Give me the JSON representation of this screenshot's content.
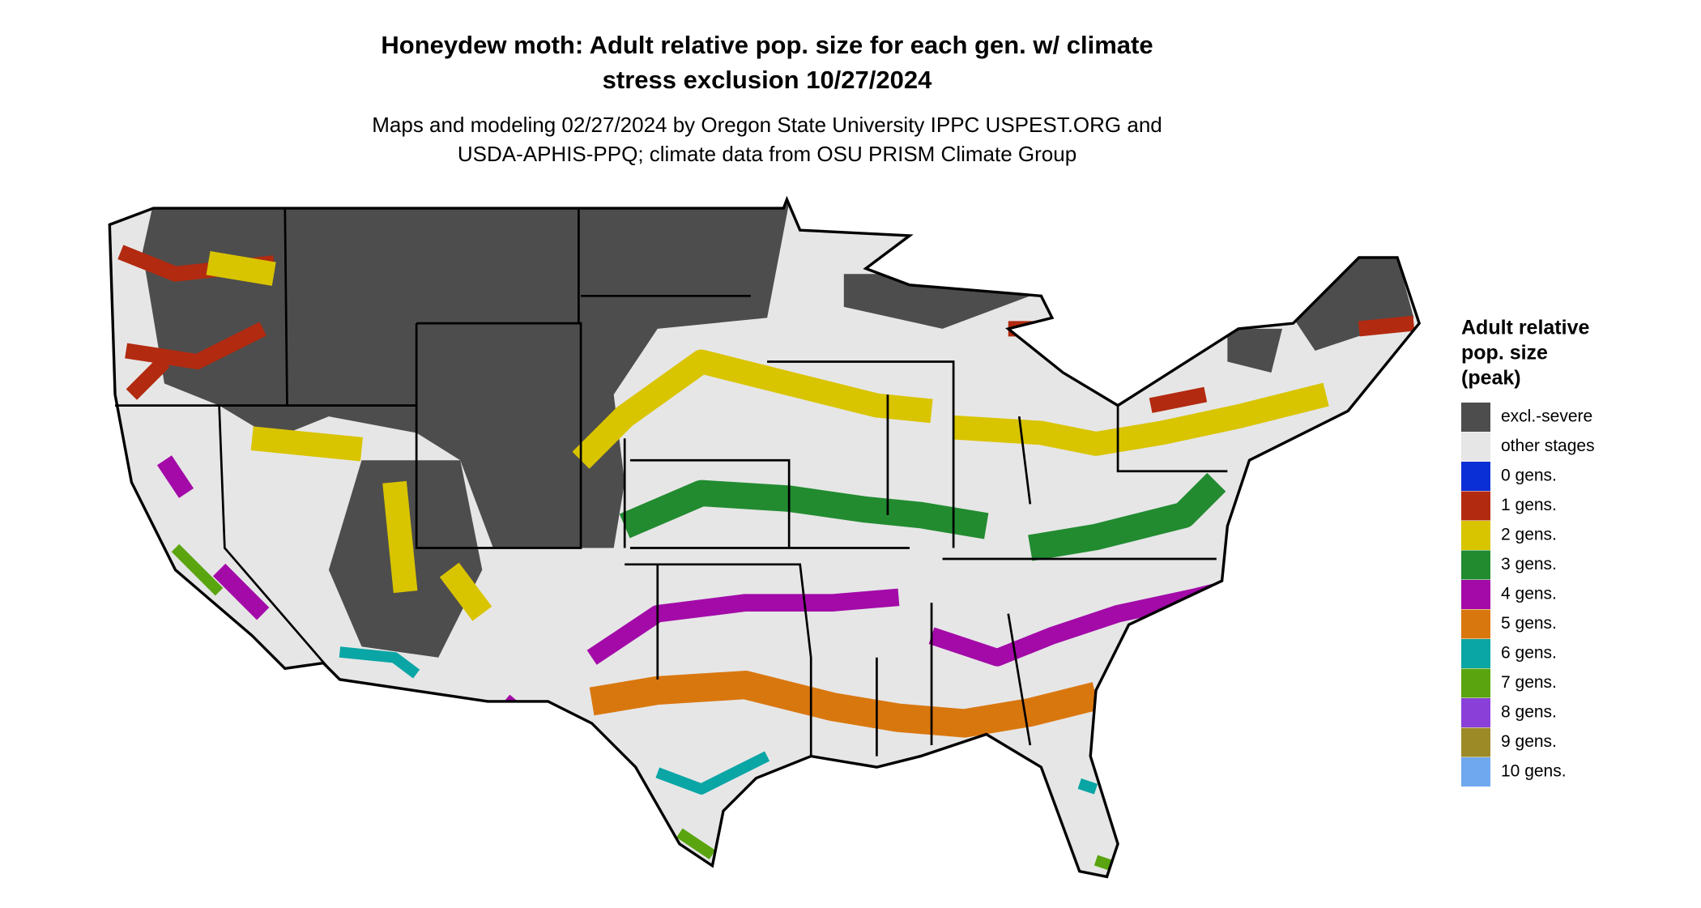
{
  "title": [
    "Honeydew moth: Adult relative pop. size for each gen. w/ climate",
    "stress exclusion 10/27/2024"
  ],
  "subtitle": [
    "Maps and modeling 02/27/2024 by Oregon State University IPPC USPEST.ORG and",
    "USDA-APHIS-PPQ; climate data from OSU PRISM Climate Group"
  ],
  "legend": {
    "title": [
      "Adult relative",
      "pop. size",
      "(peak)"
    ],
    "items": [
      {
        "label": "excl.-severe",
        "color": "#4d4d4d"
      },
      {
        "label": "other stages",
        "color": "#e6e6e6"
      },
      {
        "label": "0 gens.",
        "color": "#0a2fd6"
      },
      {
        "label": "1 gens.",
        "color": "#b22a10"
      },
      {
        "label": "2 gens.",
        "color": "#d9c400"
      },
      {
        "label": "3 gens.",
        "color": "#228b30"
      },
      {
        "label": "4 gens.",
        "color": "#a30aa8"
      },
      {
        "label": "5 gens.",
        "color": "#d9770f"
      },
      {
        "label": "6 gens.",
        "color": "#0aa5a5"
      },
      {
        "label": "7 gens.",
        "color": "#5aa50f"
      },
      {
        "label": "8 gens.",
        "color": "#8a3fd9"
      },
      {
        "label": "9 gens.",
        "color": "#9c8a26"
      },
      {
        "label": "10 gens.",
        "color": "#6fa8ef"
      }
    ]
  }
}
